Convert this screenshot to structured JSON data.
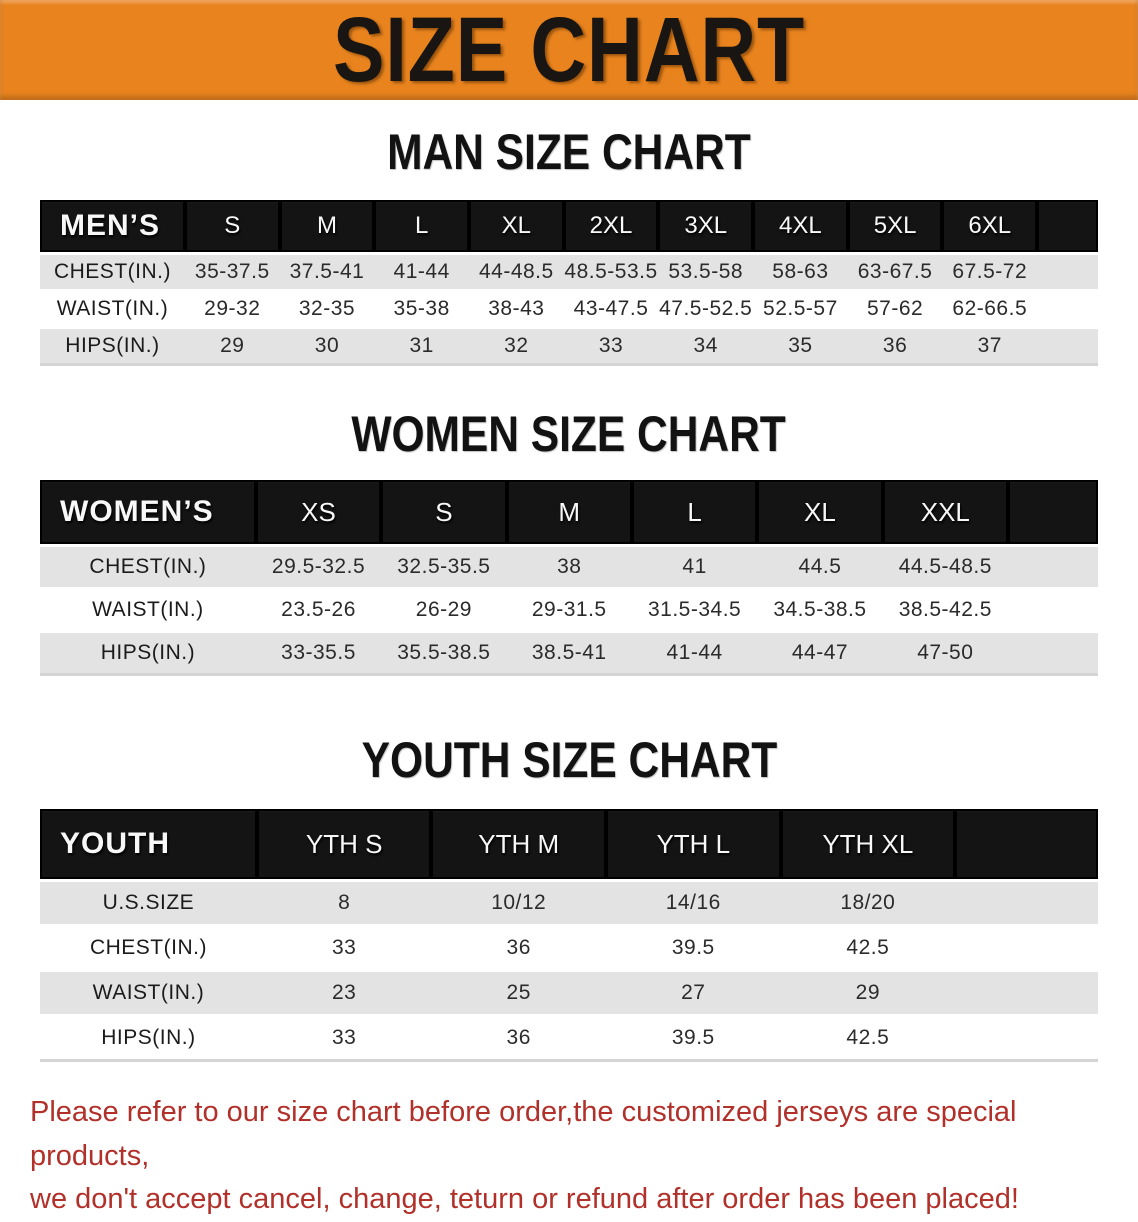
{
  "banner": {
    "title": "SIZE CHART",
    "bg_color": "#E8831E",
    "text_color": "#181512"
  },
  "chart_data": [
    {
      "type": "table",
      "title": "MAN SIZE CHART",
      "header_label": "MEN’S",
      "columns": [
        "S",
        "M",
        "L",
        "XL",
        "2XL",
        "3XL",
        "4XL",
        "5XL",
        "6XL"
      ],
      "rows": [
        {
          "label": "CHEST(IN.)",
          "values": [
            "35-37.5",
            "37.5-41",
            "41-44",
            "44-48.5",
            "48.5-53.5",
            "53.5-58",
            "58-63",
            "63-67.5",
            "67.5-72"
          ]
        },
        {
          "label": "WAIST(IN.)",
          "values": [
            "29-32",
            "32-35",
            "35-38",
            "38-43",
            "43-47.5",
            "47.5-52.5",
            "52.5-57",
            "57-62",
            "62-66.5"
          ]
        },
        {
          "label": "HIPS(IN.)",
          "values": [
            "29",
            "30",
            "31",
            "32",
            "33",
            "34",
            "35",
            "36",
            "37"
          ]
        }
      ]
    },
    {
      "type": "table",
      "title": "WOMEN SIZE CHART",
      "header_label": "WOMEN’S",
      "columns": [
        "XS",
        "S",
        "M",
        "L",
        "XL",
        "XXL"
      ],
      "rows": [
        {
          "label": "CHEST(IN.)",
          "values": [
            "29.5-32.5",
            "32.5-35.5",
            "38",
            "41",
            "44.5",
            "44.5-48.5"
          ]
        },
        {
          "label": "WAIST(IN.)",
          "values": [
            "23.5-26",
            "26-29",
            "29-31.5",
            "31.5-34.5",
            "34.5-38.5",
            "38.5-42.5"
          ]
        },
        {
          "label": "HIPS(IN.)",
          "values": [
            "33-35.5",
            "35.5-38.5",
            "38.5-41",
            "41-44",
            "44-47",
            "47-50"
          ]
        }
      ]
    },
    {
      "type": "table",
      "title": "YOUTH SIZE CHART",
      "header_label": "YOUTH",
      "columns": [
        "YTH S",
        "YTH M",
        "YTH L",
        "YTH XL"
      ],
      "rows": [
        {
          "label": "U.S.SIZE",
          "values": [
            "8",
            "10/12",
            "14/16",
            "18/20"
          ]
        },
        {
          "label": "CHEST(IN.)",
          "values": [
            "33",
            "36",
            "39.5",
            "42.5"
          ]
        },
        {
          "label": "WAIST(IN.)",
          "values": [
            "23",
            "25",
            "27",
            "29"
          ]
        },
        {
          "label": "HIPS(IN.)",
          "values": [
            "33",
            "36",
            "39.5",
            "42.5"
          ]
        }
      ]
    }
  ],
  "footer": {
    "line1": "Please refer to our size chart before order,the customized jerseys are special products,",
    "line2": "we don't accept cancel, change, teturn or refund after order has been placed!",
    "text_color": "#B2302A"
  },
  "colors": {
    "banner_orange": "#E8831E",
    "table_header_black": "#141414",
    "row_stripe_gray": "#E3E3E3",
    "notice_red": "#B2302A"
  }
}
